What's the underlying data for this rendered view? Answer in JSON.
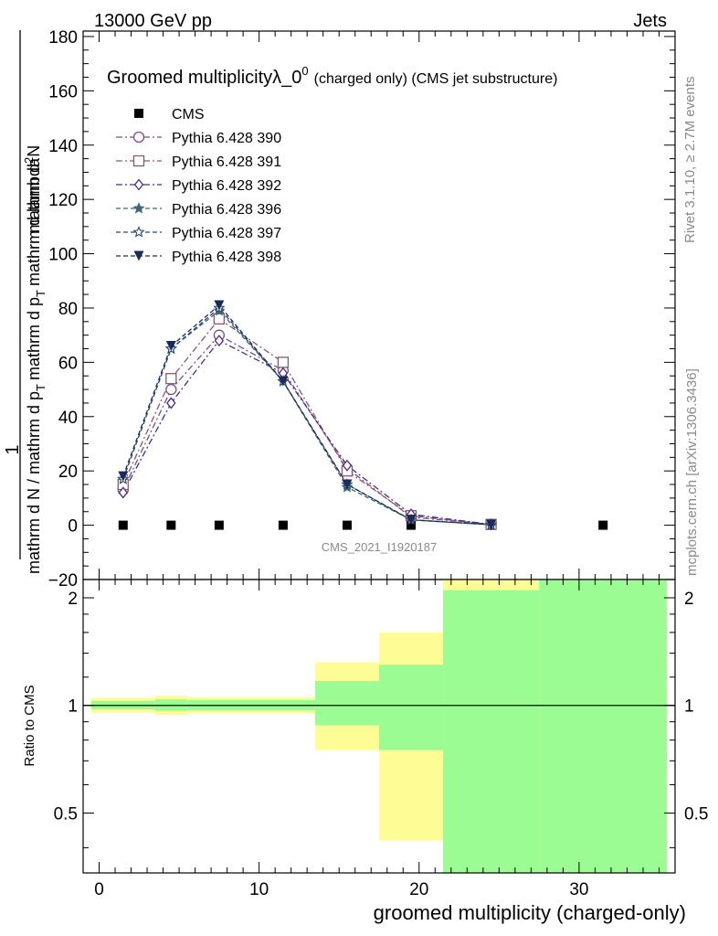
{
  "header": {
    "left": "13000 GeV pp",
    "right": "Jets"
  },
  "side_labels": {
    "rivet": "Rivet 3.1.10, ≥ 2.7M events",
    "mcplots": "mcplots.cern.ch [arXiv:1306.3436]"
  },
  "chart_data": [
    {
      "type": "line",
      "title_main": "Groomed multiplicityλ_0",
      "title_sup": "0",
      "title_sub": "(charged only) (CMS jet substructure)",
      "ylabel_parts": {
        "frac_num": "1",
        "frac_den": "mathrm d N / mathrm d p",
        "frac_den_sub": "T",
        "frac_den_tail": "mathrm d p",
        "frac_den_tail_sub": "T",
        "frac_den_end": "mathrm d lambda",
        "main_num": "mathrm d",
        "main_num_sup": "2",
        "main_num_end": "N"
      },
      "xlim": [
        -1,
        36
      ],
      "ylim": [
        -20,
        182
      ],
      "yticks": [
        -20,
        0,
        20,
        40,
        60,
        80,
        100,
        120,
        140,
        160,
        180
      ],
      "analysis_label": "CMS_2021_I1920187",
      "legend_position": "top-left",
      "series": [
        {
          "name": "CMS",
          "style": "square",
          "color": "#000000",
          "x": [
            1.5,
            4.5,
            7.5,
            11.5,
            15.5,
            19.5,
            24.5,
            31.5
          ],
          "y": [
            0,
            0,
            0,
            0,
            0,
            0,
            0,
            0
          ]
        },
        {
          "name": "Pythia 6.428 390",
          "style": "circle-open",
          "color": "#7b4f8a",
          "dash": "dashdot",
          "x": [
            1.5,
            4.5,
            7.5,
            11.5,
            15.5,
            19.5,
            24.5
          ],
          "y": [
            13,
            50,
            70,
            57,
            21,
            3,
            0.3
          ]
        },
        {
          "name": "Pythia 6.428 391",
          "style": "square-open",
          "color": "#8a5a64",
          "dash": "dashdot",
          "x": [
            1.5,
            4.5,
            7.5,
            11.5,
            15.5,
            19.5,
            24.5
          ],
          "y": [
            15,
            54,
            76,
            60,
            20,
            3.5,
            0.3
          ]
        },
        {
          "name": "Pythia 6.428 392",
          "style": "diamond-open",
          "color": "#4a2a8a",
          "dash": "dashdot",
          "x": [
            1.5,
            4.5,
            7.5,
            11.5,
            15.5,
            19.5,
            24.5
          ],
          "y": [
            12,
            45,
            68,
            56,
            22,
            4,
            0.3
          ]
        },
        {
          "name": "Pythia 6.428 396",
          "style": "star-filled",
          "color": "#3a6a7a",
          "dash": "dash",
          "x": [
            1.5,
            4.5,
            7.5,
            11.5,
            15.5,
            19.5,
            24.5
          ],
          "y": [
            17,
            65,
            79,
            53,
            14,
            2,
            0.2
          ]
        },
        {
          "name": "Pythia 6.428 397",
          "style": "star-open",
          "color": "#2a4a6a",
          "dash": "dash",
          "x": [
            1.5,
            4.5,
            7.5,
            11.5,
            15.5,
            19.5,
            24.5
          ],
          "y": [
            17,
            65,
            80,
            53,
            15,
            2,
            0.2
          ]
        },
        {
          "name": "Pythia 6.428 398",
          "style": "triangle-down-filled",
          "color": "#1a2a5a",
          "dash": "dash",
          "x": [
            1.5,
            4.5,
            7.5,
            11.5,
            15.5,
            19.5,
            24.5
          ],
          "y": [
            18,
            66,
            81,
            53,
            15,
            2,
            0.2
          ]
        }
      ]
    },
    {
      "type": "area",
      "ylabel": "Ratio to CMS",
      "xlabel": "groomed multiplicity (charged-only)",
      "xlim": [
        -1,
        36
      ],
      "ylim": [
        0.34,
        2.25
      ],
      "yscale": "log",
      "yticks": [
        0.5,
        1,
        2
      ],
      "xticks": [
        0,
        10,
        20,
        30
      ],
      "reference_line": 1,
      "colors": {
        "inner": "#9cfc94",
        "outer": "#fefc94"
      },
      "bands": [
        {
          "x0": -0.5,
          "x1": 3.5,
          "inner": [
            0.975,
            1.03
          ],
          "outer": [
            0.955,
            1.05
          ]
        },
        {
          "x0": 3.5,
          "x1": 5.5,
          "inner": [
            0.965,
            1.04
          ],
          "outer": [
            0.94,
            1.065
          ]
        },
        {
          "x0": 5.5,
          "x1": 13.5,
          "inner": [
            0.97,
            1.035
          ],
          "outer": [
            0.95,
            1.055
          ]
        },
        {
          "x0": 13.5,
          "x1": 17.5,
          "inner": [
            0.88,
            1.17
          ],
          "outer": [
            0.75,
            1.32
          ]
        },
        {
          "x0": 17.5,
          "x1": 21.5,
          "inner": [
            0.75,
            1.3
          ],
          "outer": [
            0.42,
            1.6
          ]
        },
        {
          "x0": 21.5,
          "x1": 27.5,
          "inner": [
            0.34,
            2.1
          ],
          "outer": [
            0.34,
            2.25
          ]
        },
        {
          "x0": 27.5,
          "x1": 35.5,
          "inner": [
            0.34,
            2.25
          ],
          "outer": [
            0.34,
            2.25
          ]
        }
      ]
    }
  ]
}
